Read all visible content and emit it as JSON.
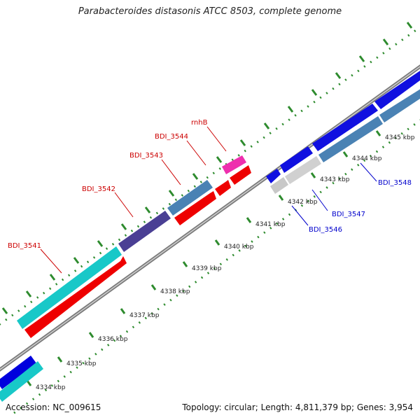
{
  "title": "Parabacteroides distasonis ATCC 8503, complete genome",
  "footer": {
    "accession": "Accession: NC_009615",
    "summary": "Topology: circular; Length: 4,811,379 bp; Genes: 3,954"
  },
  "colors": {
    "backbone": "#8a8a8a",
    "ticks": "#2e8b2e",
    "forward_cds": "#0000dd",
    "reverse_cds": "#ee0000",
    "label_red": "#cc0000",
    "label_blue": "#0000cc"
  },
  "scale_ticks": [
    {
      "label": "4334 kbp"
    },
    {
      "label": "4335 kbp"
    },
    {
      "label": "4336 kbp"
    },
    {
      "label": "4337 kbp"
    },
    {
      "label": "4338 kbp"
    },
    {
      "label": "4339 kbp"
    },
    {
      "label": "4340 kbp"
    },
    {
      "label": "4341 kbp"
    },
    {
      "label": "4342 kbp"
    },
    {
      "label": "4343 kbp"
    },
    {
      "label": "4344 kbp"
    },
    {
      "label": "4345 kbp"
    }
  ],
  "gene_labels": [
    {
      "name": "BDI_3541",
      "color": "#cc0000"
    },
    {
      "name": "BDI_3542",
      "color": "#cc0000"
    },
    {
      "name": "BDI_3543",
      "color": "#cc0000"
    },
    {
      "name": "BDI_3544",
      "color": "#cc0000"
    },
    {
      "name": "rnhB",
      "color": "#cc0000"
    },
    {
      "name": "BDI_3546",
      "color": "#0000cc"
    },
    {
      "name": "BDI_3547",
      "color": "#0000cc"
    },
    {
      "name": "BDI_3548",
      "color": "#0000cc"
    }
  ]
}
